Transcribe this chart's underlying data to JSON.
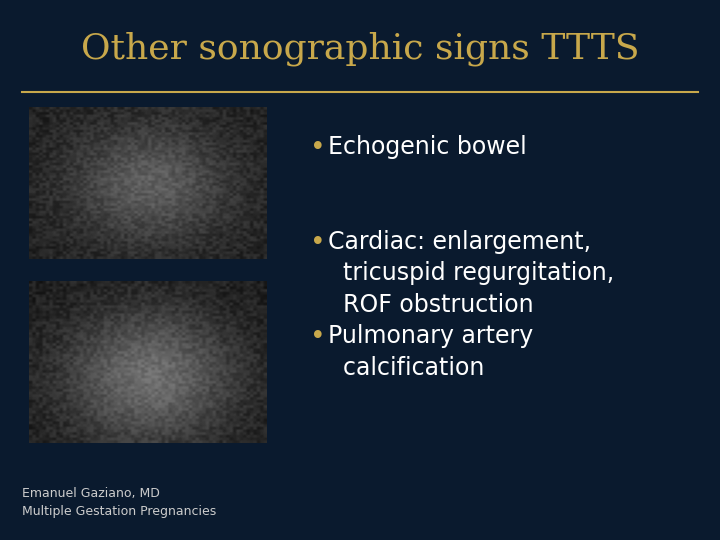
{
  "title": "Other sonographic signs TTTS",
  "title_color": "#C8A84B",
  "title_fontsize": 26,
  "background_color": "#0A1A2E",
  "line_color": "#C8A84B",
  "bullet_items": [
    "Echogenic bowel",
    "Cardiac: enlargement,\n  tricuspid regurgitation,\n  ROF obstruction",
    "Pulmonary artery\n  calcification"
  ],
  "bullet_color": "#FFFFFF",
  "bullet_fontsize": 17,
  "bullet_dot_color": "#C8A84B",
  "footer_text": "Emanuel Gaziano, MD\nMultiple Gestation Pregnancies",
  "footer_color": "#CCCCCC",
  "footer_fontsize": 9
}
